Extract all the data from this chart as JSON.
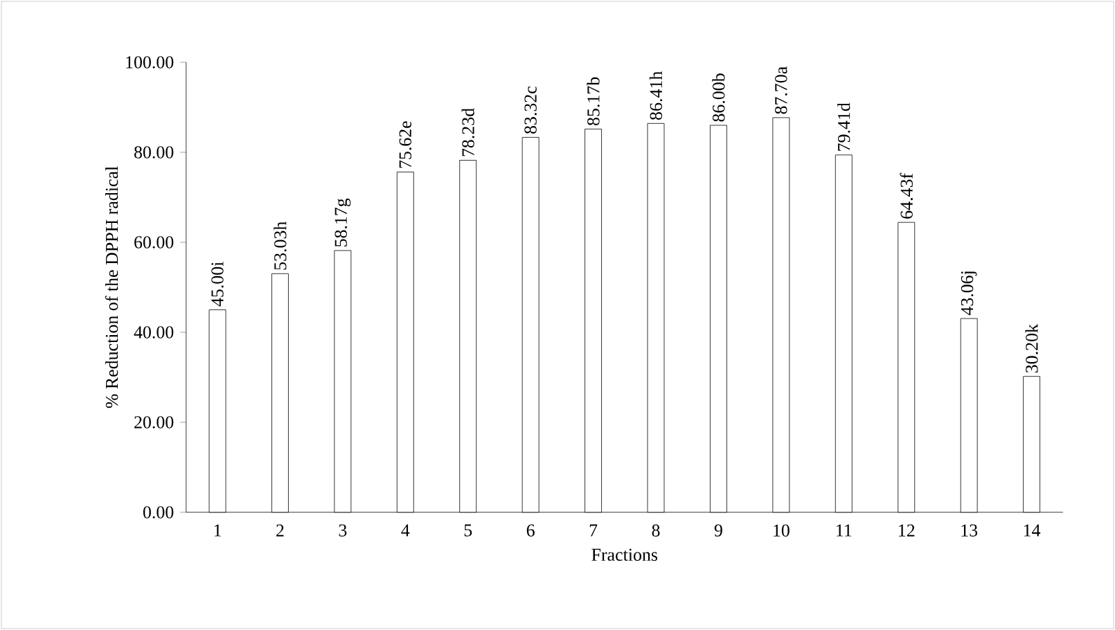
{
  "chart_data": {
    "type": "bar",
    "xlabel": "Fractions",
    "ylabel": "% Reduction of the DPPH radical",
    "categories": [
      "1",
      "2",
      "3",
      "4",
      "5",
      "6",
      "7",
      "8",
      "9",
      "10",
      "11",
      "12",
      "13",
      "14"
    ],
    "values": [
      45.0,
      53.03,
      58.17,
      75.62,
      78.23,
      83.32,
      85.17,
      86.41,
      86.0,
      87.7,
      79.41,
      64.43,
      43.06,
      30.2
    ],
    "value_labels": [
      "45.00i",
      "53.03h",
      "58.17g",
      "75.62e",
      "78.23d",
      "83.32c",
      "85.17b",
      "86.41h",
      "86.00b",
      "87.70a",
      "79.41d",
      "64.43f",
      "43.06j",
      "30.20k"
    ],
    "color": "#ffffff",
    "ylim": [
      0,
      100
    ],
    "yticks": [
      {
        "value": 0,
        "label": "0.00"
      },
      {
        "value": 20,
        "label": "20.00"
      },
      {
        "value": 40,
        "label": "40.00"
      },
      {
        "value": 60,
        "label": "60.00"
      },
      {
        "value": 80,
        "label": "80.00"
      },
      {
        "value": 100,
        "label": "100.00"
      }
    ],
    "grid": false
  }
}
